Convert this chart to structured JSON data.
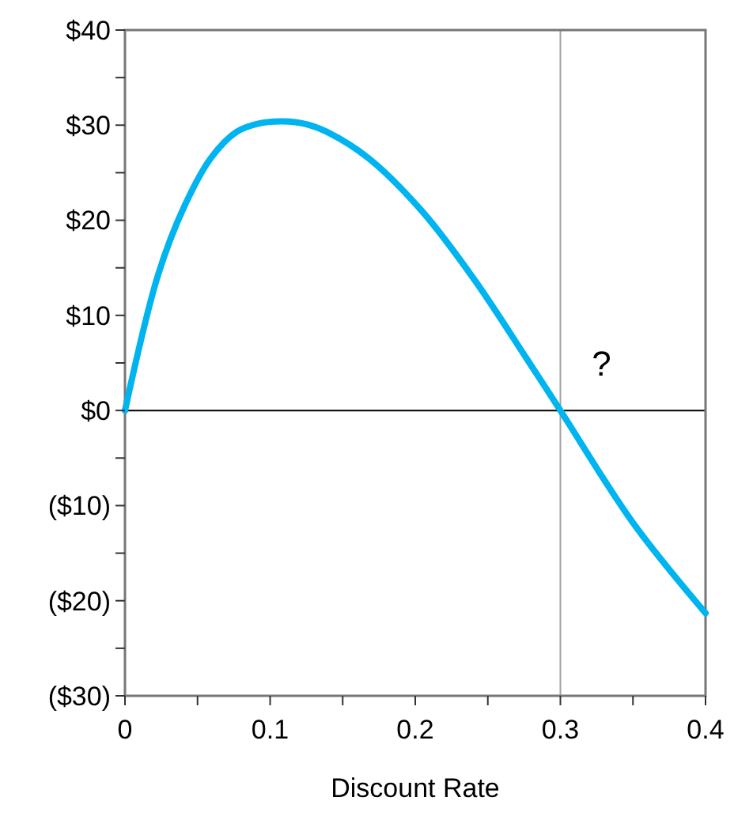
{
  "chart_data": {
    "type": "line",
    "xlabel": "Discount Rate",
    "x": [
      0,
      0.0229,
      0.041,
      0.059,
      0.077,
      0.093,
      0.109,
      0.125,
      0.139,
      0.168,
      0.205,
      0.241,
      0.277,
      0.3,
      0.35,
      0.4
    ],
    "series": [
      {
        "color": "#00b4f0",
        "values": [
          0,
          14.3,
          21.5,
          26.5,
          29.3,
          30.2,
          30.4,
          30.1,
          29.3,
          26.5,
          20.9,
          13.7,
          5.4,
          0,
          -11.8,
          -21.3
        ]
      }
    ],
    "xlim": [
      0,
      0.4
    ],
    "xticks": [
      0,
      {
        "value": 0.05,
        "label": null
      },
      0.1,
      {
        "value": 0.15,
        "label": null
      },
      0.2,
      {
        "value": 0.25,
        "label": null
      },
      0.3,
      {
        "value": 0.35,
        "label": null
      },
      0.4
    ],
    "ylim": [
      -30,
      40
    ],
    "yticks": [
      {
        "value": -30,
        "label": "($30)"
      },
      {
        "value": -25,
        "label": null
      },
      {
        "value": -20,
        "label": "($20)"
      },
      {
        "value": -15,
        "label": null
      },
      {
        "value": -10,
        "label": "($10)"
      },
      {
        "value": -5,
        "label": null
      },
      {
        "value": 0,
        "label": "$0"
      },
      {
        "value": 5,
        "label": null
      },
      {
        "value": 10,
        "label": "$10"
      },
      {
        "value": 15,
        "label": null
      },
      {
        "value": 20,
        "label": "$20"
      },
      {
        "value": 25,
        "label": null
      },
      {
        "value": 30,
        "label": "$30"
      },
      {
        "value": 35,
        "label": null
      },
      {
        "value": 40,
        "label": "$40"
      }
    ],
    "ref_lines": [
      {
        "axis": "x",
        "value": 0.3,
        "color": "#a0a0a0"
      },
      {
        "axis": "y",
        "value": 0,
        "color": "#000000"
      }
    ],
    "annotations": [
      "?"
    ],
    "grid": false,
    "line_style": "solid",
    "marker": "none"
  }
}
